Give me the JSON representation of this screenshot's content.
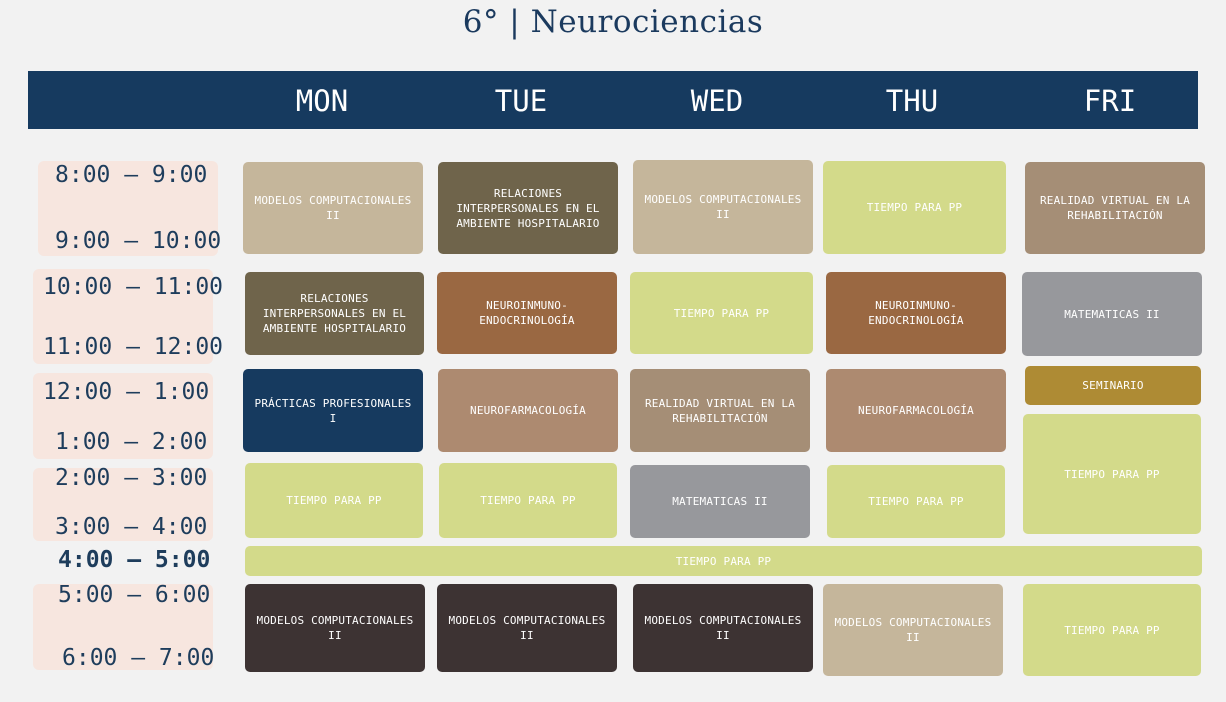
{
  "title": "6° | Neurociencias",
  "days": [
    "MON",
    "TUE",
    "WED",
    "THU",
    "FRI"
  ],
  "times": [
    "8:00 – 9:00",
    "9:00 – 10:00",
    "10:00 – 11:00",
    "11:00 – 12:00",
    "12:00 – 1:00",
    "1:00 – 2:00",
    "2:00 – 3:00",
    "3:00 – 4:00",
    "4:00 – 5:00",
    "5:00 – 6:00",
    "6:00 – 7:00"
  ],
  "colors": {
    "header": "#163a5f",
    "background": "#f2f2f2",
    "time_box": "#f7e6df",
    "beige": "#c5b69b",
    "olive": "#6f644b",
    "lime": "#d3da8a",
    "taupe": "#a58e76",
    "rust": "#9a6842",
    "grey": "#97989c",
    "navy": "#163a5f",
    "tan": "#ad8a70",
    "gold": "#ae8b34",
    "dark": "#3d3333"
  },
  "schedule": {
    "mon": [
      "MODELOS COMPUTACIONALES II",
      "RELACIONES INTERPERSONALES EN EL AMBIENTE HOSPITALARIO",
      "PRÁCTICAS PROFESIONALES I",
      "TIEMPO PARA PP",
      "MODELOS COMPUTACIONALES II"
    ],
    "tue": [
      "RELACIONES INTERPERSONALES EN EL AMBIENTE HOSPITALARIO",
      "NEUROINMUNO-ENDOCRINOLOGÍA",
      "NEUROFARMACOLOGÍA",
      "TIEMPO PARA PP",
      "MODELOS COMPUTACIONALES II"
    ],
    "wed": [
      "MODELOS COMPUTACIONALES II",
      "TIEMPO PARA PP",
      "REALIDAD VIRTUAL EN LA REHABILITACIÓN",
      "MATEMATICAS II",
      "MODELOS COMPUTACIONALES II"
    ],
    "thu": [
      "TIEMPO PARA PP",
      "NEUROINMUNO-ENDOCRINOLOGÍA",
      "NEUROFARMACOLOGÍA",
      "TIEMPO PARA PP",
      "MODELOS COMPUTACIONALES II"
    ],
    "fri": [
      "REALIDAD VIRTUAL EN LA REHABILITACIÓN",
      "MATEMATICAS II",
      "SEMINARIO",
      "TIEMPO PARA PP",
      "TIEMPO PARA PP"
    ],
    "all_week_4_5": "TIEMPO PARA PP"
  }
}
